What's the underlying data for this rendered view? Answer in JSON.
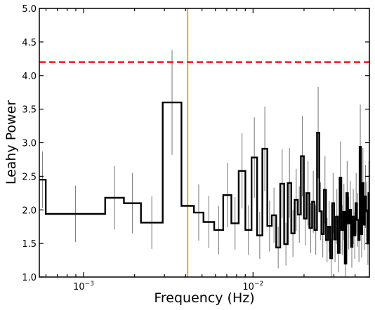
{
  "chart_data": {
    "type": "line",
    "title": "",
    "xlabel": "Frequency (Hz)",
    "ylabel": "Leahy Power",
    "xscale": "log",
    "xlim": [
      0.000548,
      0.0486
    ],
    "ylim": [
      1.0,
      5.0
    ],
    "grid": false,
    "legend": "none",
    "yticks": [
      1.0,
      1.5,
      2.0,
      2.5,
      3.0,
      3.5,
      4.0,
      4.5,
      5.0
    ],
    "ytick_labels": [
      "1.0",
      "1.5",
      "2.0",
      "2.5",
      "3.0",
      "3.5",
      "4.0",
      "4.5",
      "5.0"
    ],
    "xticks_major": [
      0.001,
      0.01
    ],
    "xtick_labels": [
      "10",
      "10"
    ],
    "xtick_exponents": [
      "−3",
      "−2"
    ],
    "threshold": {
      "y": 4.2,
      "color": "#ff0000",
      "style": "dashed"
    },
    "marker_line": {
      "x": 0.00411,
      "color": "#ffa500"
    },
    "colors": {
      "step": "#000000",
      "errorbar": "#808080"
    },
    "series": [
      {
        "style": "step",
        "edges": [
          0.000548,
          0.000598,
          0.001341,
          0.00173,
          0.00218,
          0.00293,
          0.00378,
          0.00448,
          0.0051,
          0.0059,
          0.00667,
          0.00745,
          0.00823,
          0.00901,
          0.0098,
          0.01057,
          0.01135,
          0.01214,
          0.0129,
          0.0137,
          0.01447,
          0.01526,
          0.01602,
          0.01681,
          0.0176,
          0.01837,
          0.01915,
          0.01995,
          0.02072,
          0.0215,
          0.0223,
          0.02306,
          0.02385,
          0.02462,
          0.0254,
          0.0262,
          0.02696,
          0.02775,
          0.02853,
          0.0293,
          0.0301,
          0.03085,
          0.03165,
          0.03243,
          0.0332,
          0.034,
          0.03477,
          0.03554,
          0.03632,
          0.0371,
          0.0379,
          0.03866,
          0.03945,
          0.04022,
          0.041,
          0.0418,
          0.04256,
          0.04335,
          0.04412,
          0.0449,
          0.0457,
          0.04646,
          0.04725,
          0.048,
          0.0486
        ],
        "values": [
          2.45,
          1.94,
          2.18,
          2.1,
          1.81,
          3.6,
          2.06,
          1.96,
          1.82,
          1.7,
          2.22,
          1.8,
          2.58,
          1.7,
          2.78,
          1.62,
          2.91,
          1.76,
          1.92,
          1.44,
          2.39,
          1.49,
          2.4,
          1.65,
          2.15,
          1.93,
          2.8,
          1.87,
          2.25,
          1.73,
          2.12,
          1.7,
          3.15,
          1.98,
          1.64,
          2.3,
          1.55,
          1.75,
          1.28,
          2.1,
          1.56,
          1.9,
          1.36,
          2.48,
          1.7,
          1.97,
          1.2,
          2.25,
          1.8,
          2.0,
          1.45,
          1.9,
          1.62,
          2.1,
          1.85,
          1.55,
          2.94,
          1.64,
          2.4,
          1.78,
          2.2,
          1.98,
          1.5,
          2.25
        ],
        "errors": [
          0.42,
          0.42,
          0.47,
          0.45,
          0.39,
          0.78,
          0.44,
          0.42,
          0.39,
          0.36,
          0.48,
          0.39,
          0.56,
          0.37,
          0.6,
          0.35,
          0.63,
          0.38,
          0.41,
          0.31,
          0.51,
          0.32,
          0.52,
          0.35,
          0.46,
          0.42,
          0.6,
          0.4,
          0.48,
          0.37,
          0.46,
          0.37,
          0.68,
          0.43,
          0.35,
          0.5,
          0.33,
          0.38,
          0.28,
          0.45,
          0.34,
          0.41,
          0.29,
          0.54,
          0.37,
          0.42,
          0.26,
          0.48,
          0.39,
          0.43,
          0.31,
          0.41,
          0.35,
          0.45,
          0.4,
          0.33,
          0.63,
          0.35,
          0.52,
          0.38,
          0.47,
          0.43,
          0.32,
          0.48
        ]
      }
    ]
  }
}
